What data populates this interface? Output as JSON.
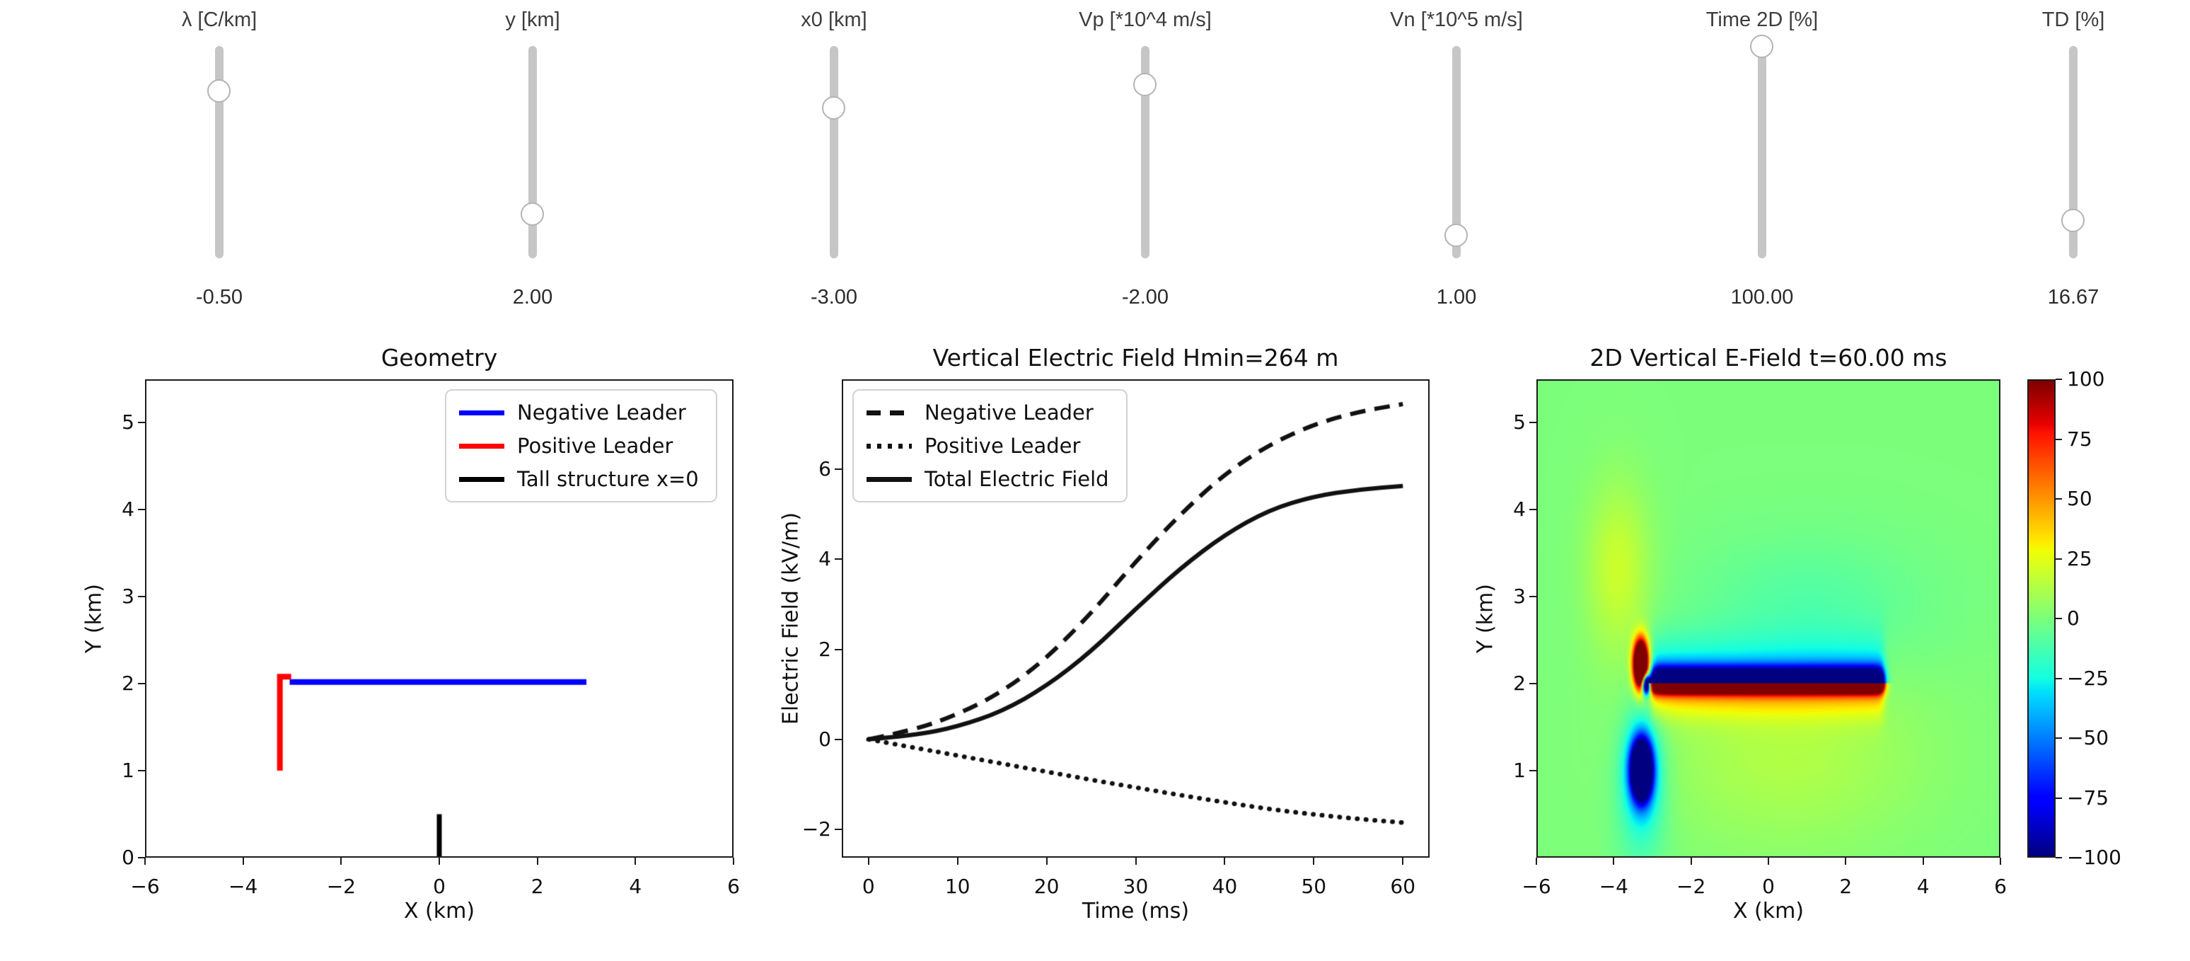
{
  "sliders": [
    {
      "id": "lambda",
      "label": "λ [C/km]",
      "value": "-0.50",
      "handle_percent": 21
    },
    {
      "id": "y",
      "label": "y [km]",
      "value": "2.00",
      "handle_percent": 79
    },
    {
      "id": "x0",
      "label": "x0 [km]",
      "value": "-3.00",
      "handle_percent": 29
    },
    {
      "id": "vp",
      "label": "Vp [*10^4 m/s]",
      "value": "-2.00",
      "handle_percent": 18
    },
    {
      "id": "vn",
      "label": "Vn [*10^5 m/s]",
      "value": "1.00",
      "handle_percent": 89
    },
    {
      "id": "time2d",
      "label": "Time 2D [%]",
      "value": "100.00",
      "handle_percent": 0
    },
    {
      "id": "td",
      "label": "TD [%]",
      "value": "16.67",
      "handle_percent": 82
    }
  ],
  "chart_data": [
    {
      "type": "line",
      "title": "Geometry",
      "xlabel": "X (km)",
      "ylabel": "Y (km)",
      "xlim": [
        -6,
        6
      ],
      "ylim": [
        0,
        5.5
      ],
      "xticks": [
        -6,
        -4,
        -2,
        0,
        2,
        4,
        6
      ],
      "xtick_labels": [
        "−6",
        "−4",
        "−2",
        "0",
        "2",
        "4",
        "6"
      ],
      "yticks": [
        0,
        1,
        2,
        3,
        4,
        5
      ],
      "ytick_labels": [
        "0",
        "1",
        "2",
        "3",
        "4",
        "5"
      ],
      "legend_position": "upper right",
      "series": [
        {
          "name": "Negative Leader",
          "color": "#0000ff",
          "linewidth": 8,
          "points": [
            [
              -3.05,
              2.02
            ],
            [
              3.0,
              2.02
            ]
          ]
        },
        {
          "name": "Positive Leader",
          "color": "#ff0000",
          "linewidth": 8,
          "points": [
            [
              -3.02,
              2.08
            ],
            [
              -3.25,
              2.08
            ],
            [
              -3.25,
              1.0
            ]
          ]
        },
        {
          "name": "Tall structure x=0",
          "color": "#000000",
          "linewidth": 7,
          "points": [
            [
              0,
              0
            ],
            [
              0,
              0.5
            ]
          ]
        }
      ]
    },
    {
      "type": "line",
      "title": "Vertical Electric Field Hmin=264 m",
      "xlabel": "Time (ms)",
      "ylabel": "Electric Field (kV/m)",
      "xlim": [
        -3,
        63
      ],
      "ylim": [
        -2.63,
        8.0
      ],
      "xticks": [
        0,
        10,
        20,
        30,
        40,
        50,
        60
      ],
      "xtick_labels": [
        "0",
        "10",
        "20",
        "30",
        "40",
        "50",
        "60"
      ],
      "yticks": [
        -2,
        0,
        2,
        4,
        6
      ],
      "ytick_labels": [
        "−2",
        "0",
        "2",
        "4",
        "6"
      ],
      "legend_position": "upper left",
      "x": [
        0,
        5,
        10,
        15,
        20,
        25,
        30,
        35,
        40,
        45,
        50,
        55,
        60
      ],
      "series": [
        {
          "name": "Negative Leader",
          "style": "dashed",
          "color": "#111111",
          "values": [
            0,
            0.2,
            0.55,
            1.05,
            1.8,
            2.8,
            3.95,
            5.0,
            5.9,
            6.55,
            7.0,
            7.28,
            7.45
          ]
        },
        {
          "name": "Positive Leader",
          "style": "dotted",
          "color": "#111111",
          "values": [
            0,
            -0.18,
            -0.36,
            -0.54,
            -0.72,
            -0.9,
            -1.07,
            -1.24,
            -1.4,
            -1.55,
            -1.67,
            -1.77,
            -1.85
          ]
        },
        {
          "name": "Total Electric Field",
          "style": "solid",
          "color": "#111111",
          "values": [
            0,
            0.08,
            0.28,
            0.62,
            1.18,
            1.95,
            2.9,
            3.8,
            4.55,
            5.1,
            5.4,
            5.55,
            5.63
          ]
        }
      ]
    },
    {
      "type": "heatmap",
      "title": "2D Vertical E-Field t=60.00 ms",
      "xlabel": "X (km)",
      "ylabel": "Y (km)",
      "xlim": [
        -6,
        6
      ],
      "ylim": [
        0,
        5.5
      ],
      "xticks": [
        -6,
        -4,
        -2,
        0,
        2,
        4,
        6
      ],
      "xtick_labels": [
        "−6",
        "−4",
        "−2",
        "0",
        "2",
        "4",
        "6"
      ],
      "yticks": [
        1,
        2,
        3,
        4,
        5
      ],
      "ytick_labels": [
        "1",
        "2",
        "3",
        "4",
        "5"
      ],
      "colormap": "jet",
      "colorbar": {
        "vmin": -100,
        "vmax": 100,
        "tick_labels": [
          "100",
          "75",
          "50",
          "25",
          "0",
          "−25",
          "−50",
          "−75",
          "−100"
        ]
      },
      "field": {
        "background": 0,
        "channel": {
          "y": 2.0,
          "x_min": -3.05,
          "x_max": 3.0,
          "edge": 0.05,
          "above": [
            [
              170,
              0.17
            ],
            [
              40,
              0.5
            ]
          ],
          "below": [
            [
              170,
              0.11
            ],
            [
              50,
              0.35
            ]
          ]
        },
        "blobs": [
          {
            "x": -3.32,
            "y": 2.22,
            "sx": 0.18,
            "sy": 0.26,
            "amp": 260
          },
          {
            "x": -3.18,
            "y": 1.99,
            "sx": 0.1,
            "sy": 0.11,
            "amp": -215
          },
          {
            "x": -3.3,
            "y": 1.0,
            "sx": 0.24,
            "sy": 0.3,
            "amp": -240
          },
          {
            "x": -3.3,
            "y": 1.0,
            "sx": 0.45,
            "sy": 0.58,
            "amp": -45
          },
          {
            "x": -3.3,
            "y": 0.7,
            "sx": 0.7,
            "sy": 0.95,
            "amp": -16
          },
          {
            "x": -3.9,
            "y": 3.3,
            "sx": 0.85,
            "sy": 1.0,
            "amp": 20
          },
          {
            "x": 0.5,
            "y": 1.2,
            "sx": 3.5,
            "sy": 1.1,
            "amp": 13
          },
          {
            "x": 1.0,
            "y": 2.85,
            "sx": 3.0,
            "sy": 0.8,
            "amp": -11
          }
        ]
      }
    }
  ]
}
